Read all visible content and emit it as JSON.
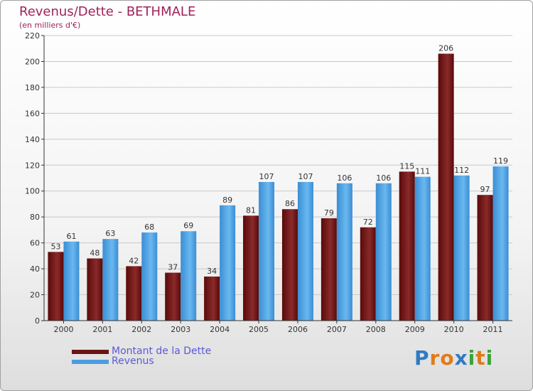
{
  "header": {
    "title": "Revenus/Dette - BETHMALE",
    "subtitle": "(en milliers d'€)"
  },
  "legend": [
    {
      "label": "Montant de la Dette",
      "color": "#6b1212"
    },
    {
      "label": "Revenus",
      "color": "#4a9ee0"
    }
  ],
  "brand": {
    "letters": [
      "P",
      "r",
      "o",
      "x",
      "i",
      "t",
      "i"
    ],
    "colors": [
      "#2f7bc4",
      "#e07b1a",
      "#e07b1a",
      "#2f7bc4",
      "#3aa33a",
      "#e07b1a",
      "#3aa33a"
    ]
  },
  "chart_data": {
    "type": "bar",
    "title": "Revenus/Dette - BETHMALE",
    "subtitle": "(en milliers d'€)",
    "xlabel": "",
    "ylabel": "",
    "categories": [
      "2000",
      "2001",
      "2002",
      "2003",
      "2004",
      "2005",
      "2006",
      "2007",
      "2008",
      "2009",
      "2010",
      "2011"
    ],
    "series": [
      {
        "name": "Montant de la Dette",
        "color": "#6b1212",
        "values": [
          53,
          48,
          42,
          37,
          34,
          81,
          86,
          79,
          72,
          115,
          206,
          97
        ]
      },
      {
        "name": "Revenus",
        "color": "#4a9ee0",
        "values": [
          61,
          63,
          68,
          69,
          89,
          107,
          107,
          106,
          106,
          111,
          112,
          119
        ]
      }
    ],
    "ylim": [
      0,
      220
    ],
    "yticks": [
      0,
      20,
      40,
      60,
      80,
      100,
      120,
      140,
      160,
      180,
      200,
      220
    ],
    "grid": true,
    "legend_position": "bottom-left"
  }
}
